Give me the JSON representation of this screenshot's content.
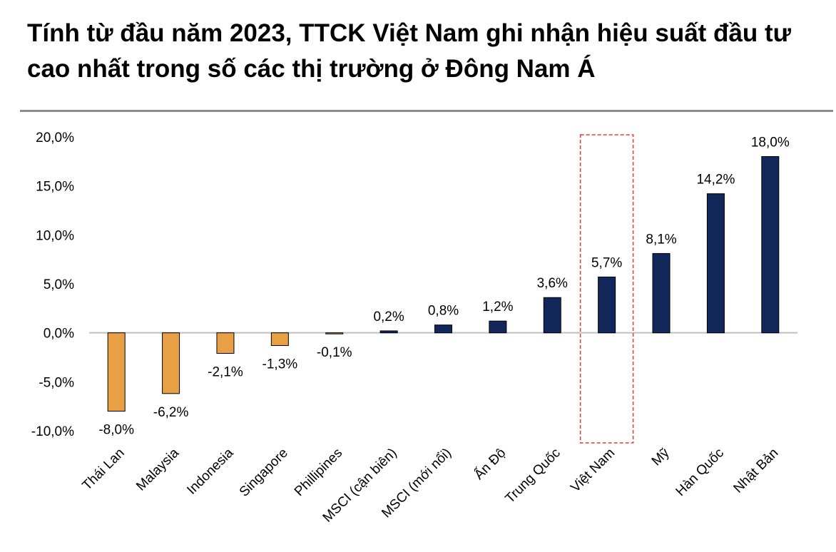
{
  "title": "Tính từ đầu năm 2023, TTCK Việt Nam ghi nhận hiệu suất đầu tư cao nhất trong số các thị trường ở Đông Nam Á",
  "chart_data": {
    "type": "bar",
    "categories": [
      "Thái Lan",
      "Malaysia",
      "Indonesia",
      "Singapore",
      "Phillipines",
      "MSCI (cận biên)",
      "MSCI (mới nổi)",
      "Ấn Độ",
      "Trung Quốc",
      "Việt Nam",
      "Mỹ",
      "Hàn Quốc",
      "Nhật Bản"
    ],
    "values": [
      -8.0,
      -6.2,
      -2.1,
      -1.3,
      -0.1,
      0.2,
      0.8,
      1.2,
      3.6,
      5.7,
      8.1,
      14.2,
      18.0
    ],
    "data_labels": [
      "-8,0%",
      "-6,2%",
      "-2,1%",
      "-1,3%",
      "-0,1%",
      "0,2%",
      "0,8%",
      "1,2%",
      "3,6%",
      "5,7%",
      "8,1%",
      "14,2%",
      "18,0%"
    ],
    "y_ticks": [
      20,
      15,
      10,
      5,
      0,
      -5,
      -10
    ],
    "y_tick_labels": [
      "20,0%",
      "15,0%",
      "10,0%",
      "5,0%",
      "0,0%",
      "-5,0%",
      "-10,0%"
    ],
    "ylim": [
      -10,
      20
    ],
    "grid": false,
    "colors": {
      "negative": "#E8A044",
      "positive": "#12275A",
      "highlight_box": "#E53935",
      "axis": "#BFBFBF"
    },
    "highlight_category": "Việt Nam"
  }
}
